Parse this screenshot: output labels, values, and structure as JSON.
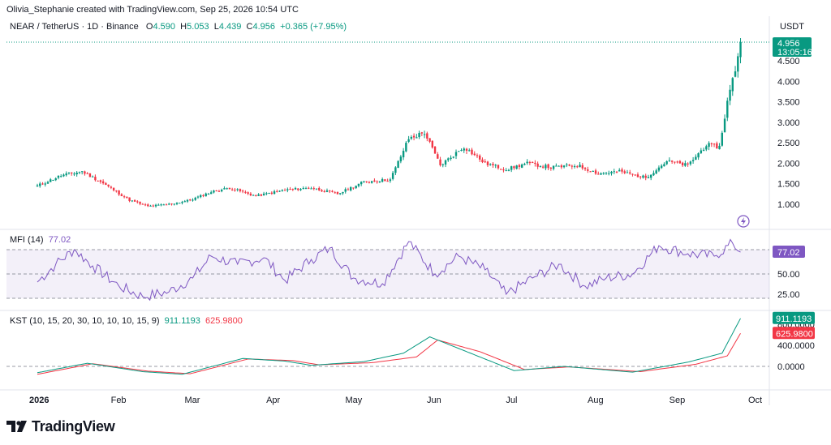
{
  "header": {
    "credit": "Olivia_Stephanie created with TradingView.com, Sep 25, 2026 10:54 UTC",
    "symbol": "NEAR / TetherUS · 1D · Binance",
    "o_label": "O",
    "o_value": "4.590",
    "h_label": "H",
    "h_value": "5.053",
    "l_label": "L",
    "l_value": "4.439",
    "c_label": "C",
    "c_value": "4.956",
    "change": "+0.365 (+7.95%)",
    "unit": "USDT"
  },
  "price_badge": {
    "value": "4.956",
    "countdown": "13:05:16"
  },
  "colors": {
    "up": "#089981",
    "down": "#f23645",
    "mfi": "#7e57c2",
    "kst": "#089981",
    "kst_signal": "#f23645"
  },
  "icons": {
    "alert": "lightning-icon",
    "logo": "tradingview-logo-icon"
  },
  "mfi": {
    "label": "MFI (14)",
    "value": "77.02"
  },
  "kst": {
    "label": "KST (10, 15, 20, 30, 10, 10, 10, 15, 9)",
    "value": "911.1193",
    "signal": "625.9800"
  },
  "brand": "TradingView",
  "chart_data": [
    {
      "type": "candlestick",
      "title": "NEAR / TetherUS · 1D · Binance",
      "ylabel": "USDT",
      "ylim": [
        0.75,
        5.05
      ],
      "y_ticks": [
        "1.000",
        "1.500",
        "2.000",
        "2.500",
        "3.000",
        "3.500",
        "4.000",
        "4.500"
      ],
      "x_ticks": [
        "2026",
        "Feb",
        "Mar",
        "Apr",
        "May",
        "Jun",
        "Jul",
        "Aug",
        "Sep",
        "Oct"
      ],
      "approx_close_path": [
        {
          "x": "2026-01-01",
          "y": 1.45
        },
        {
          "x": "2026-01-10",
          "y": 1.7
        },
        {
          "x": "2026-01-18",
          "y": 1.8
        },
        {
          "x": "2026-01-25",
          "y": 1.55
        },
        {
          "x": "2026-02-05",
          "y": 1.1
        },
        {
          "x": "2026-02-12",
          "y": 0.95
        },
        {
          "x": "2026-02-20",
          "y": 1.0
        },
        {
          "x": "2026-02-28",
          "y": 1.1
        },
        {
          "x": "2026-03-08",
          "y": 1.3
        },
        {
          "x": "2026-03-15",
          "y": 1.4
        },
        {
          "x": "2026-03-25",
          "y": 1.2
        },
        {
          "x": "2026-04-05",
          "y": 1.35
        },
        {
          "x": "2026-04-15",
          "y": 1.4
        },
        {
          "x": "2026-04-25",
          "y": 1.25
        },
        {
          "x": "2026-05-05",
          "y": 1.55
        },
        {
          "x": "2026-05-15",
          "y": 1.6
        },
        {
          "x": "2026-05-22",
          "y": 2.6
        },
        {
          "x": "2026-05-28",
          "y": 2.75
        },
        {
          "x": "2026-06-03",
          "y": 1.95
        },
        {
          "x": "2026-06-12",
          "y": 2.4
        },
        {
          "x": "2026-06-20",
          "y": 2.0
        },
        {
          "x": "2026-06-28",
          "y": 1.85
        },
        {
          "x": "2026-07-06",
          "y": 2.0
        },
        {
          "x": "2026-07-15",
          "y": 1.9
        },
        {
          "x": "2026-07-25",
          "y": 1.95
        },
        {
          "x": "2026-08-02",
          "y": 1.75
        },
        {
          "x": "2026-08-10",
          "y": 1.8
        },
        {
          "x": "2026-08-20",
          "y": 1.65
        },
        {
          "x": "2026-08-28",
          "y": 2.05
        },
        {
          "x": "2026-09-05",
          "y": 1.95
        },
        {
          "x": "2026-09-12",
          "y": 2.45
        },
        {
          "x": "2026-09-17",
          "y": 2.4
        },
        {
          "x": "2026-09-20",
          "y": 3.5
        },
        {
          "x": "2026-09-23",
          "y": 4.3
        },
        {
          "x": "2026-09-25",
          "y": 4.956
        }
      ]
    },
    {
      "type": "line",
      "title": "MFI (14)",
      "y_ticks": [
        "50.00",
        "25.00"
      ],
      "bands": [
        20,
        50,
        80
      ],
      "ylim": [
        10,
        100
      ],
      "series": [
        {
          "name": "MFI (14)",
          "values": [
            {
              "x": "2026-01-01",
              "y": 40
            },
            {
              "x": "2026-01-08",
              "y": 62
            },
            {
              "x": "2026-01-15",
              "y": 80
            },
            {
              "x": "2026-01-22",
              "y": 60
            },
            {
              "x": "2026-02-01",
              "y": 35
            },
            {
              "x": "2026-02-10",
              "y": 22
            },
            {
              "x": "2026-02-20",
              "y": 28
            },
            {
              "x": "2026-03-01",
              "y": 45
            },
            {
              "x": "2026-03-08",
              "y": 72
            },
            {
              "x": "2026-03-18",
              "y": 62
            },
            {
              "x": "2026-03-28",
              "y": 70
            },
            {
              "x": "2026-04-05",
              "y": 42
            },
            {
              "x": "2026-04-15",
              "y": 68
            },
            {
              "x": "2026-04-22",
              "y": 82
            },
            {
              "x": "2026-05-01",
              "y": 45
            },
            {
              "x": "2026-05-12",
              "y": 38
            },
            {
              "x": "2026-05-22",
              "y": 90
            },
            {
              "x": "2026-06-01",
              "y": 50
            },
            {
              "x": "2026-06-10",
              "y": 72
            },
            {
              "x": "2026-06-20",
              "y": 55
            },
            {
              "x": "2026-06-28",
              "y": 25
            },
            {
              "x": "2026-07-08",
              "y": 45
            },
            {
              "x": "2026-07-18",
              "y": 62
            },
            {
              "x": "2026-07-28",
              "y": 35
            },
            {
              "x": "2026-08-05",
              "y": 45
            },
            {
              "x": "2026-08-15",
              "y": 50
            },
            {
              "x": "2026-08-25",
              "y": 85
            },
            {
              "x": "2026-09-05",
              "y": 75
            },
            {
              "x": "2026-09-15",
              "y": 72
            },
            {
              "x": "2026-09-22",
              "y": 88
            },
            {
              "x": "2026-09-25",
              "y": 77.02
            }
          ]
        }
      ]
    },
    {
      "type": "line",
      "title": "KST (10, 15, 20, 30, 10, 10, 10, 15, 9)",
      "y_ticks": [
        "800.0000",
        "400.0000",
        "0.0000"
      ],
      "ylim": [
        -250,
        950
      ],
      "series": [
        {
          "name": "KST",
          "values": [
            {
              "x": "2026-01-01",
              "y": -120
            },
            {
              "x": "2026-01-20",
              "y": 60
            },
            {
              "x": "2026-02-10",
              "y": -100
            },
            {
              "x": "2026-02-25",
              "y": -150
            },
            {
              "x": "2026-03-20",
              "y": 150
            },
            {
              "x": "2026-04-05",
              "y": 100
            },
            {
              "x": "2026-04-15",
              "y": 20
            },
            {
              "x": "2026-05-05",
              "y": 90
            },
            {
              "x": "2026-05-20",
              "y": 250
            },
            {
              "x": "2026-05-30",
              "y": 560
            },
            {
              "x": "2026-06-12",
              "y": 300
            },
            {
              "x": "2026-07-01",
              "y": -80
            },
            {
              "x": "2026-07-20",
              "y": 0
            },
            {
              "x": "2026-08-15",
              "y": -110
            },
            {
              "x": "2026-09-05",
              "y": 80
            },
            {
              "x": "2026-09-18",
              "y": 250
            },
            {
              "x": "2026-09-25",
              "y": 911.1193
            }
          ]
        },
        {
          "name": "Signal",
          "values": [
            {
              "x": "2026-01-01",
              "y": -150
            },
            {
              "x": "2026-01-22",
              "y": 50
            },
            {
              "x": "2026-02-12",
              "y": -90
            },
            {
              "x": "2026-02-28",
              "y": -140
            },
            {
              "x": "2026-03-22",
              "y": 140
            },
            {
              "x": "2026-04-08",
              "y": 110
            },
            {
              "x": "2026-04-18",
              "y": 30
            },
            {
              "x": "2026-05-08",
              "y": 70
            },
            {
              "x": "2026-05-25",
              "y": 180
            },
            {
              "x": "2026-06-02",
              "y": 500
            },
            {
              "x": "2026-06-18",
              "y": 280
            },
            {
              "x": "2026-07-05",
              "y": -60
            },
            {
              "x": "2026-07-22",
              "y": -10
            },
            {
              "x": "2026-08-18",
              "y": -100
            },
            {
              "x": "2026-09-08",
              "y": 40
            },
            {
              "x": "2026-09-20",
              "y": 200
            },
            {
              "x": "2026-09-25",
              "y": 625.98
            }
          ]
        }
      ]
    }
  ]
}
